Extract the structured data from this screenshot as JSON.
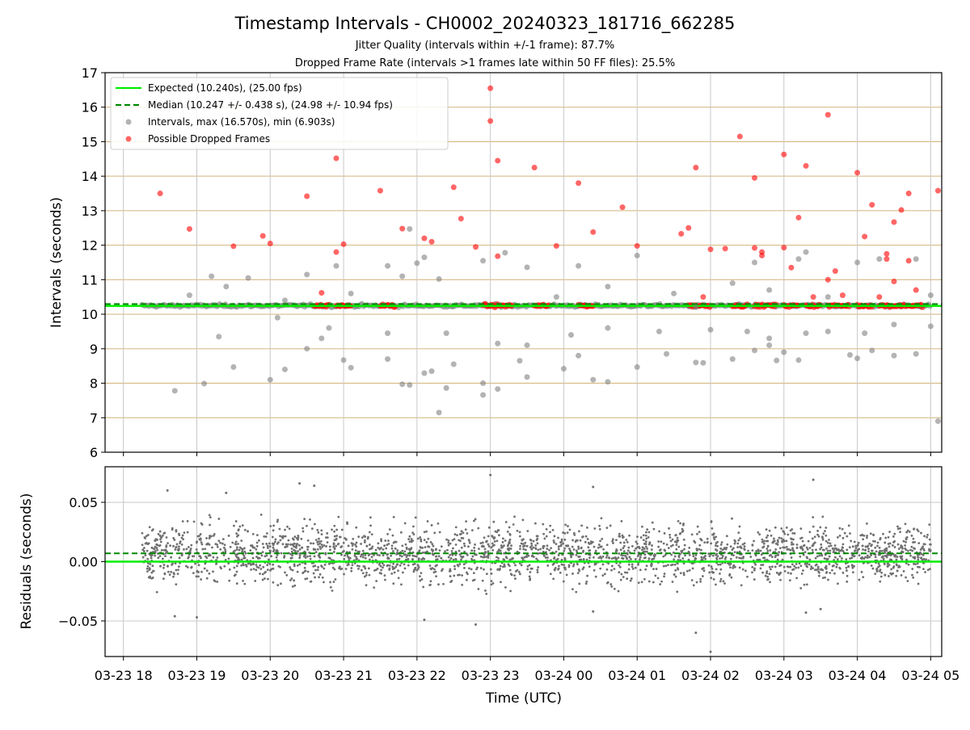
{
  "chart_data": [
    {
      "type": "scatter",
      "title": "Timestamp Intervals - CH0002_20240323_181716_662285",
      "subtitles": [
        "Jitter Quality (intervals within +/-1 frame): 87.7%",
        "Dropped Frame Rate (intervals >1 frames late within 50 FF files): 25.5%"
      ],
      "xlabel": "",
      "ylabel": "Intervals (seconds)",
      "ylim": [
        6,
        17
      ],
      "yticks": [
        6,
        7,
        8,
        9,
        10,
        11,
        12,
        13,
        14,
        15,
        16,
        17
      ],
      "grid": true,
      "legend_position": "top-left",
      "legend": [
        "Expected (10.240s), (25.00 fps)",
        "Median (10.247 +/- 0.438 s), (24.98 +/- 10.94 fps)",
        "Intervals, max (16.570s), min (6.903s)",
        "Possible Dropped Frames"
      ],
      "x_range_hours": [
        17.75,
        29.15
      ],
      "expected": 10.24,
      "median": 10.247,
      "max": 16.57,
      "min": 6.903,
      "series": [
        {
          "name": "Intervals, max (16.570s), min (6.903s)",
          "color": "#808080",
          "points": [
            [
              18.7,
              7.78
            ],
            [
              19.1,
              7.99
            ],
            [
              19.5,
              8.47
            ],
            [
              20.0,
              8.1
            ],
            [
              20.2,
              8.4
            ],
            [
              20.5,
              9.0
            ],
            [
              20.7,
              9.3
            ],
            [
              21.0,
              8.67
            ],
            [
              21.1,
              8.45
            ],
            [
              21.6,
              8.7
            ],
            [
              21.8,
              7.97
            ],
            [
              21.9,
              7.95
            ],
            [
              22.1,
              8.29
            ],
            [
              22.2,
              8.35
            ],
            [
              22.3,
              7.15
            ],
            [
              22.4,
              7.86
            ],
            [
              22.5,
              8.55
            ],
            [
              22.9,
              7.66
            ],
            [
              22.9,
              8.0
            ],
            [
              23.1,
              7.83
            ],
            [
              23.4,
              8.65
            ],
            [
              23.5,
              8.18
            ],
            [
              24.0,
              8.42
            ],
            [
              24.2,
              8.8
            ],
            [
              24.4,
              8.1
            ],
            [
              24.6,
              8.04
            ],
            [
              25.0,
              8.47
            ],
            [
              25.4,
              8.85
            ],
            [
              25.8,
              8.6
            ],
            [
              25.9,
              8.59
            ],
            [
              26.3,
              8.7
            ],
            [
              26.6,
              8.95
            ],
            [
              26.8,
              9.1
            ],
            [
              26.9,
              8.66
            ],
            [
              27.0,
              8.9
            ],
            [
              27.2,
              8.67
            ],
            [
              27.9,
              8.82
            ],
            [
              28.0,
              8.72
            ],
            [
              28.2,
              8.95
            ],
            [
              28.5,
              8.8
            ],
            [
              28.8,
              8.85
            ],
            [
              29.1,
              6.9
            ],
            [
              18.9,
              10.55
            ],
            [
              19.2,
              11.1
            ],
            [
              19.4,
              10.8
            ],
            [
              19.7,
              11.05
            ],
            [
              20.2,
              10.4
            ],
            [
              20.5,
              11.15
            ],
            [
              20.9,
              11.4
            ],
            [
              21.1,
              10.6
            ],
            [
              21.6,
              11.4
            ],
            [
              21.8,
              11.1
            ],
            [
              21.9,
              12.47
            ],
            [
              22.0,
              11.48
            ],
            [
              22.1,
              11.65
            ],
            [
              22.3,
              11.02
            ],
            [
              22.9,
              11.55
            ],
            [
              23.2,
              11.78
            ],
            [
              23.5,
              11.36
            ],
            [
              23.9,
              10.5
            ],
            [
              24.2,
              11.4
            ],
            [
              24.6,
              10.8
            ],
            [
              25.0,
              11.7
            ],
            [
              25.5,
              10.6
            ],
            [
              25.8,
              10.2
            ],
            [
              26.3,
              10.9
            ],
            [
              26.6,
              11.5
            ],
            [
              26.8,
              10.7
            ],
            [
              27.2,
              11.6
            ],
            [
              27.3,
              11.8
            ],
            [
              27.6,
              10.5
            ],
            [
              28.0,
              11.5
            ],
            [
              28.3,
              11.6
            ],
            [
              28.8,
              11.6
            ],
            [
              29.0,
              10.55
            ],
            [
              19.3,
              9.35
            ],
            [
              20.1,
              9.9
            ],
            [
              20.8,
              9.6
            ],
            [
              21.6,
              9.45
            ],
            [
              22.4,
              9.45
            ],
            [
              23.1,
              9.15
            ],
            [
              23.5,
              9.1
            ],
            [
              24.1,
              9.4
            ],
            [
              24.6,
              9.6
            ],
            [
              25.3,
              9.5
            ],
            [
              26.0,
              9.55
            ],
            [
              26.5,
              9.5
            ],
            [
              26.8,
              9.3
            ],
            [
              27.3,
              9.45
            ],
            [
              27.6,
              9.5
            ],
            [
              28.1,
              9.45
            ],
            [
              28.5,
              9.7
            ],
            [
              29.0,
              9.65
            ]
          ]
        },
        {
          "name": "Possible Dropped Frames",
          "color": "#ff0000",
          "points": [
            [
              18.5,
              13.5
            ],
            [
              18.9,
              12.47
            ],
            [
              19.5,
              11.97
            ],
            [
              19.9,
              12.27
            ],
            [
              20.0,
              12.05
            ],
            [
              20.5,
              13.42
            ],
            [
              20.7,
              10.62
            ],
            [
              20.9,
              14.52
            ],
            [
              20.9,
              11.8
            ],
            [
              21.0,
              12.03
            ],
            [
              21.5,
              13.58
            ],
            [
              21.8,
              12.48
            ],
            [
              22.1,
              12.2
            ],
            [
              22.2,
              12.1
            ],
            [
              22.5,
              13.68
            ],
            [
              22.6,
              12.77
            ],
            [
              22.8,
              11.95
            ],
            [
              23.0,
              15.6
            ],
            [
              23.0,
              16.55
            ],
            [
              23.1,
              11.68
            ],
            [
              23.1,
              14.45
            ],
            [
              23.6,
              14.25
            ],
            [
              23.9,
              11.98
            ],
            [
              24.2,
              13.8
            ],
            [
              24.4,
              12.38
            ],
            [
              24.8,
              13.1
            ],
            [
              25.0,
              11.98
            ],
            [
              25.6,
              12.33
            ],
            [
              25.7,
              12.5
            ],
            [
              25.8,
              14.25
            ],
            [
              25.9,
              10.5
            ],
            [
              26.0,
              11.88
            ],
            [
              26.2,
              11.9
            ],
            [
              26.4,
              15.15
            ],
            [
              26.6,
              13.95
            ],
            [
              26.6,
              11.92
            ],
            [
              26.7,
              11.8
            ],
            [
              26.7,
              11.7
            ],
            [
              27.0,
              14.63
            ],
            [
              27.0,
              11.93
            ],
            [
              27.1,
              11.35
            ],
            [
              27.2,
              12.8
            ],
            [
              27.3,
              14.3
            ],
            [
              27.4,
              10.5
            ],
            [
              27.6,
              15.78
            ],
            [
              27.6,
              11.0
            ],
            [
              27.7,
              11.25
            ],
            [
              27.8,
              10.55
            ],
            [
              28.0,
              14.1
            ],
            [
              28.1,
              12.25
            ],
            [
              28.2,
              13.17
            ],
            [
              28.3,
              10.5
            ],
            [
              28.4,
              11.6
            ],
            [
              28.4,
              11.75
            ],
            [
              28.5,
              12.67
            ],
            [
              28.5,
              10.95
            ],
            [
              28.6,
              13.02
            ],
            [
              28.7,
              11.55
            ],
            [
              28.7,
              13.5
            ],
            [
              28.8,
              10.7
            ],
            [
              29.1,
              13.58
            ]
          ]
        }
      ],
      "dropped_frame_clusters": [
        [
          20.6,
          20.8
        ],
        [
          20.9,
          21.1
        ],
        [
          21.5,
          21.7
        ],
        [
          22.9,
          23.3
        ],
        [
          23.6,
          23.8
        ],
        [
          24.2,
          24.4
        ],
        [
          25.7,
          26.0
        ],
        [
          26.3,
          26.5
        ],
        [
          26.6,
          26.9
        ],
        [
          27.0,
          27.2
        ],
        [
          27.3,
          27.5
        ],
        [
          27.6,
          27.9
        ],
        [
          28.0,
          28.2
        ],
        [
          28.3,
          28.6
        ],
        [
          28.6,
          28.9
        ]
      ]
    },
    {
      "type": "scatter",
      "xlabel": "Time (UTC)",
      "ylabel": "Residuals (seconds)",
      "ylim": [
        -0.08,
        0.08
      ],
      "yticks": [
        -0.05,
        0.0,
        0.05
      ],
      "ytick_labels": [
        "−0.05",
        "0.00",
        "0.05"
      ],
      "xticks": [
        18,
        19,
        20,
        21,
        22,
        23,
        24,
        25,
        26,
        27,
        28,
        29
      ],
      "xtick_labels": [
        "03-23 18",
        "03-23 19",
        "03-23 20",
        "03-23 21",
        "03-23 22",
        "03-23 23",
        "03-24 00",
        "03-24 01",
        "03-24 02",
        "03-24 03",
        "03-24 04",
        "03-24 05"
      ],
      "grid": true,
      "expected_line": 0.0,
      "median_line": 0.007,
      "residual_spread": 0.02,
      "outliers": [
        [
          18.6,
          0.06
        ],
        [
          19.4,
          0.058
        ],
        [
          20.4,
          0.066
        ],
        [
          20.6,
          0.064
        ],
        [
          23.0,
          0.073
        ],
        [
          24.4,
          0.063
        ],
        [
          27.4,
          0.069
        ],
        [
          18.7,
          -0.046
        ],
        [
          19.0,
          -0.047
        ],
        [
          22.1,
          -0.049
        ],
        [
          22.8,
          -0.053
        ],
        [
          24.4,
          -0.042
        ],
        [
          25.8,
          -0.06
        ],
        [
          26.0,
          -0.076
        ],
        [
          27.3,
          -0.043
        ],
        [
          27.5,
          -0.04
        ]
      ]
    }
  ]
}
